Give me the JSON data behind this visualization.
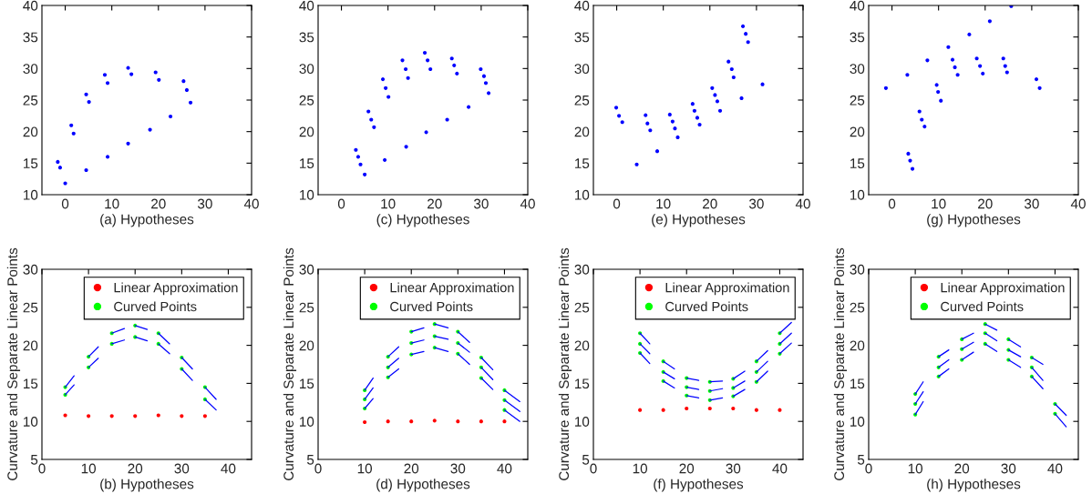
{
  "chart_data": [
    {
      "type": "scatter",
      "xlabel": "(a) Hypotheses",
      "xlim": [
        -5,
        40
      ],
      "ylim": [
        10,
        40
      ],
      "xticks": [
        0,
        10,
        20,
        30,
        40
      ],
      "yticks": [
        10,
        15,
        20,
        25,
        30,
        35,
        40
      ],
      "marker": "circle",
      "series": [
        {
          "color": "#0000ff",
          "x": [
            -1.6,
            -1.1,
            0,
            1.3,
            1.8,
            4.5,
            5.1,
            4.5,
            8.5,
            9.1,
            9.1,
            13.5,
            14.2,
            13.5,
            18.2,
            19.4,
            20.1,
            22.6,
            25.4,
            26.1,
            26.9
          ],
          "values": [
            15.2,
            14.3,
            11.8,
            21.0,
            19.7,
            25.9,
            24.7,
            13.9,
            29.0,
            27.7,
            16.0,
            30.1,
            29.1,
            18.1,
            20.3,
            29.4,
            28.2,
            22.4,
            28.0,
            26.6,
            24.6
          ]
        }
      ]
    },
    {
      "type": "scatter",
      "xlabel": "(c) Hypotheses",
      "xlim": [
        -5,
        40
      ],
      "ylim": [
        10,
        40
      ],
      "xticks": [
        0,
        10,
        20,
        30,
        40
      ],
      "yticks": [
        10,
        15,
        20,
        25,
        30,
        35,
        40
      ],
      "marker": "circle",
      "series": [
        {
          "color": "#0000ff",
          "x": [
            3.1,
            3.6,
            4.1,
            5.0,
            5.8,
            6.4,
            7.0,
            8.9,
            9.5,
            10.1,
            9.3,
            13.1,
            13.8,
            14.3,
            13.9,
            17.9,
            18.5,
            19.1,
            18.2,
            22.7,
            23.7,
            24.2,
            24.8,
            27.3,
            29.9,
            30.6,
            31.0,
            31.6
          ],
          "values": [
            17.1,
            16.0,
            14.8,
            13.2,
            23.2,
            21.9,
            20.7,
            28.3,
            26.9,
            25.5,
            15.5,
            31.3,
            29.9,
            28.5,
            17.6,
            32.5,
            31.3,
            29.9,
            19.9,
            21.9,
            31.6,
            30.5,
            29.2,
            23.9,
            29.9,
            28.8,
            27.7,
            26.1
          ]
        }
      ]
    },
    {
      "type": "scatter",
      "xlabel": "(e) Hypotheses",
      "xlim": [
        -5,
        40
      ],
      "ylim": [
        10,
        40
      ],
      "xticks": [
        0,
        10,
        20,
        30,
        40
      ],
      "yticks": [
        10,
        15,
        20,
        25,
        30,
        35,
        40
      ],
      "marker": "circle",
      "series": [
        {
          "color": "#0000ff",
          "x": [
            -0.1,
            0.5,
            1.2,
            4.3,
            6.2,
            6.6,
            7.2,
            8.7,
            11.4,
            12.0,
            12.5,
            13.1,
            16.3,
            16.7,
            17.3,
            17.8,
            20.5,
            21.1,
            21.6,
            22.2,
            24.0,
            24.7,
            25.1,
            26.8,
            27.1,
            27.7,
            28.2,
            31.3
          ],
          "values": [
            23.8,
            22.5,
            21.5,
            14.8,
            22.6,
            21.3,
            20.2,
            16.9,
            22.7,
            21.6,
            20.5,
            19.1,
            24.4,
            23.3,
            22.2,
            21.1,
            26.9,
            25.8,
            24.8,
            23.3,
            31.1,
            29.9,
            28.6,
            25.3,
            36.7,
            35.5,
            34.2,
            27.5
          ]
        }
      ]
    },
    {
      "type": "scatter",
      "xlabel": "(g) Hypotheses",
      "xlim": [
        -5,
        40
      ],
      "ylim": [
        10,
        40
      ],
      "xticks": [
        0,
        10,
        20,
        30,
        40
      ],
      "yticks": [
        10,
        15,
        20,
        25,
        30,
        35,
        40
      ],
      "marker": "circle",
      "series": [
        {
          "color": "#0000ff",
          "x": [
            -1.3,
            3.3,
            3.5,
            3.9,
            4.4,
            5.9,
            6.4,
            7.0,
            7.6,
            9.6,
            9.9,
            10.5,
            12.1,
            13.0,
            13.5,
            14.1,
            16.6,
            18.2,
            18.9,
            19.5,
            21.0,
            23.9,
            24.3,
            24.7,
            25.6,
            31.0,
            31.7
          ],
          "values": [
            26.9,
            29.0,
            16.5,
            15.4,
            14.1,
            23.2,
            21.9,
            20.8,
            31.3,
            27.4,
            26.3,
            24.9,
            33.4,
            31.4,
            30.2,
            29.0,
            35.4,
            31.6,
            30.4,
            29.2,
            37.5,
            31.6,
            30.4,
            29.4,
            39.9,
            28.3,
            26.9
          ]
        }
      ]
    },
    {
      "type": "scatter",
      "xlabel": "(b) Hypotheses",
      "ylabel": "Curvature and Separate Linear Points",
      "xlim": [
        0,
        45
      ],
      "ylim": [
        5,
        30
      ],
      "xticks": [
        0,
        10,
        20,
        30,
        40
      ],
      "yticks": [
        5,
        10,
        15,
        20,
        25,
        30
      ],
      "marker": "circle",
      "legend": "top right",
      "series": [
        {
          "name": "Linear Approximation",
          "color": "#ff0000",
          "x": [
            5,
            10,
            15,
            20,
            25,
            30,
            35
          ],
          "values": [
            10.8,
            10.7,
            10.7,
            10.7,
            10.8,
            10.7,
            10.7
          ]
        },
        {
          "name": "Curved Points",
          "color": "#00ff00",
          "x": [
            5,
            5,
            10,
            10,
            15,
            15,
            20,
            20,
            25,
            25,
            30,
            30,
            35,
            35
          ],
          "values": [
            14.5,
            13.5,
            18.5,
            17.1,
            21.6,
            20.2,
            22.6,
            21.1,
            21.6,
            20.2,
            18.4,
            16.9,
            14.5,
            12.9
          ]
        },
        {
          "type": "line",
          "marker": "none",
          "color": "#0000ff",
          "x": [
            5,
            6.9
          ],
          "values": [
            14.5,
            16.0
          ]
        },
        {
          "type": "line",
          "marker": "none",
          "color": "#0000ff",
          "x": [
            5,
            6.9
          ],
          "values": [
            13.5,
            14.8
          ]
        },
        {
          "type": "line",
          "marker": "none",
          "color": "#0000ff",
          "x": [
            10,
            12.1
          ],
          "values": [
            18.5,
            19.8
          ]
        },
        {
          "type": "line",
          "marker": "none",
          "color": "#0000ff",
          "x": [
            10,
            12.1
          ],
          "values": [
            17.1,
            18.3
          ]
        },
        {
          "type": "line",
          "marker": "none",
          "color": "#0000ff",
          "x": [
            15,
            17.7
          ],
          "values": [
            21.6,
            22.2
          ]
        },
        {
          "type": "line",
          "marker": "none",
          "color": "#0000ff",
          "x": [
            15,
            17.7
          ],
          "values": [
            20.2,
            20.7
          ]
        },
        {
          "type": "line",
          "marker": "none",
          "color": "#0000ff",
          "x": [
            20,
            22.6
          ],
          "values": [
            22.6,
            22.1
          ]
        },
        {
          "type": "line",
          "marker": "none",
          "color": "#0000ff",
          "x": [
            20,
            22.6
          ],
          "values": [
            21.1,
            20.6
          ]
        },
        {
          "type": "line",
          "marker": "none",
          "color": "#0000ff",
          "x": [
            25,
            27.4
          ],
          "values": [
            21.6,
            20.2
          ]
        },
        {
          "type": "line",
          "marker": "none",
          "color": "#0000ff",
          "x": [
            25,
            27.4
          ],
          "values": [
            20.2,
            18.9
          ]
        },
        {
          "type": "line",
          "marker": "none",
          "color": "#0000ff",
          "x": [
            30,
            32.3
          ],
          "values": [
            18.4,
            16.9
          ]
        },
        {
          "type": "line",
          "marker": "none",
          "color": "#0000ff",
          "x": [
            30,
            32.3
          ],
          "values": [
            16.9,
            15.4
          ]
        },
        {
          "type": "line",
          "marker": "none",
          "color": "#0000ff",
          "x": [
            35,
            37.4
          ],
          "values": [
            14.5,
            12.9
          ]
        },
        {
          "type": "line",
          "marker": "none",
          "color": "#0000ff",
          "x": [
            35,
            37.4
          ],
          "values": [
            12.9,
            11.5
          ]
        }
      ]
    },
    {
      "type": "scatter",
      "xlabel": "(d) Hypotheses",
      "ylabel": "Curvature and Separate Linear Points",
      "xlim": [
        0,
        45
      ],
      "ylim": [
        5,
        30
      ],
      "xticks": [
        0,
        10,
        20,
        30,
        40
      ],
      "yticks": [
        5,
        10,
        15,
        20,
        25,
        30
      ],
      "marker": "circle",
      "legend": "top right",
      "series": [
        {
          "name": "Linear Approximation",
          "color": "#ff0000",
          "x": [
            10,
            15,
            20,
            25,
            30,
            35,
            40
          ],
          "values": [
            9.9,
            10.0,
            10.0,
            10.1,
            10.0,
            10.0,
            10.0
          ]
        },
        {
          "name": "Curved Points",
          "color": "#00ff00",
          "x": [
            10,
            10,
            10,
            15,
            15,
            15,
            20,
            20,
            20,
            25,
            25,
            25,
            30,
            30,
            30,
            35,
            35,
            35,
            40,
            40,
            40
          ],
          "values": [
            14.1,
            12.9,
            11.7,
            18.5,
            17.1,
            15.8,
            21.8,
            20.3,
            18.8,
            22.8,
            21.2,
            19.7,
            21.8,
            20.3,
            18.9,
            18.4,
            17.1,
            15.7,
            14.1,
            12.8,
            11.5
          ]
        },
        {
          "type": "line",
          "marker": "none",
          "color": "#0000ff",
          "x": [
            10,
            11.8
          ],
          "values": [
            14.1,
            15.7
          ]
        },
        {
          "type": "line",
          "marker": "none",
          "color": "#0000ff",
          "x": [
            10,
            11.8
          ],
          "values": [
            12.9,
            14.4
          ]
        },
        {
          "type": "line",
          "marker": "none",
          "color": "#0000ff",
          "x": [
            10,
            11.8
          ],
          "values": [
            11.7,
            13.0
          ]
        },
        {
          "type": "line",
          "marker": "none",
          "color": "#0000ff",
          "x": [
            15,
            17.3
          ],
          "values": [
            18.5,
            19.8
          ]
        },
        {
          "type": "line",
          "marker": "none",
          "color": "#0000ff",
          "x": [
            15,
            17.3
          ],
          "values": [
            17.1,
            18.3
          ]
        },
        {
          "type": "line",
          "marker": "none",
          "color": "#0000ff",
          "x": [
            15,
            17.3
          ],
          "values": [
            15.8,
            16.9
          ]
        },
        {
          "type": "line",
          "marker": "none",
          "color": "#0000ff",
          "x": [
            20,
            22.7
          ],
          "values": [
            21.8,
            22.3
          ]
        },
        {
          "type": "line",
          "marker": "none",
          "color": "#0000ff",
          "x": [
            20,
            22.7
          ],
          "values": [
            20.3,
            20.7
          ]
        },
        {
          "type": "line",
          "marker": "none",
          "color": "#0000ff",
          "x": [
            20,
            22.7
          ],
          "values": [
            18.8,
            19.2
          ]
        },
        {
          "type": "line",
          "marker": "none",
          "color": "#0000ff",
          "x": [
            25,
            27.9
          ],
          "values": [
            22.8,
            22.3
          ]
        },
        {
          "type": "line",
          "marker": "none",
          "color": "#0000ff",
          "x": [
            25,
            27.9
          ],
          "values": [
            21.2,
            20.8
          ]
        },
        {
          "type": "line",
          "marker": "none",
          "color": "#0000ff",
          "x": [
            25,
            27.9
          ],
          "values": [
            19.7,
            19.2
          ]
        },
        {
          "type": "line",
          "marker": "none",
          "color": "#0000ff",
          "x": [
            30,
            32.5
          ],
          "values": [
            21.8,
            20.4
          ]
        },
        {
          "type": "line",
          "marker": "none",
          "color": "#0000ff",
          "x": [
            30,
            32.5
          ],
          "values": [
            20.3,
            19.1
          ]
        },
        {
          "type": "line",
          "marker": "none",
          "color": "#0000ff",
          "x": [
            30,
            32.5
          ],
          "values": [
            18.9,
            17.5
          ]
        },
        {
          "type": "line",
          "marker": "none",
          "color": "#0000ff",
          "x": [
            35,
            37.5
          ],
          "values": [
            18.4,
            16.8
          ]
        },
        {
          "type": "line",
          "marker": "none",
          "color": "#0000ff",
          "x": [
            35,
            37.5
          ],
          "values": [
            17.1,
            15.5
          ]
        },
        {
          "type": "line",
          "marker": "none",
          "color": "#0000ff",
          "x": [
            35,
            37.5
          ],
          "values": [
            15.7,
            14.2
          ]
        },
        {
          "type": "line",
          "marker": "none",
          "color": "#0000ff",
          "x": [
            40,
            43.3
          ],
          "values": [
            14.1,
            12.6
          ]
        },
        {
          "type": "line",
          "marker": "none",
          "color": "#0000ff",
          "x": [
            40,
            43.3
          ],
          "values": [
            12.8,
            11.3
          ]
        },
        {
          "type": "line",
          "marker": "none",
          "color": "#0000ff",
          "x": [
            40,
            43.3
          ],
          "values": [
            11.5,
            10.0
          ]
        }
      ]
    },
    {
      "type": "scatter",
      "xlabel": "(f) Hypotheses",
      "ylabel": "Curvature and Separate Linear Points",
      "xlim": [
        0,
        45
      ],
      "ylim": [
        5,
        30
      ],
      "xticks": [
        0,
        10,
        20,
        30,
        40
      ],
      "yticks": [
        5,
        10,
        15,
        20,
        25,
        30
      ],
      "marker": "circle",
      "legend": "top right",
      "series": [
        {
          "name": "Linear Approximation",
          "color": "#ff0000",
          "x": [
            10,
            15,
            20,
            25,
            30,
            35,
            40
          ],
          "values": [
            11.5,
            11.5,
            11.7,
            11.7,
            11.7,
            11.5,
            11.5
          ]
        },
        {
          "name": "Curved Points",
          "color": "#00ff00",
          "x": [
            10,
            10,
            10,
            15,
            15,
            15,
            20,
            20,
            20,
            25,
            25,
            25,
            30,
            30,
            30,
            35,
            35,
            35,
            40,
            40,
            40
          ],
          "values": [
            21.6,
            20.2,
            19.0,
            17.9,
            16.5,
            15.3,
            15.7,
            14.5,
            13.4,
            15.2,
            14.0,
            12.8,
            15.6,
            14.4,
            13.3,
            17.9,
            16.5,
            15.2,
            21.6,
            20.2,
            18.9
          ]
        },
        {
          "type": "line",
          "marker": "none",
          "color": "#0000ff",
          "x": [
            10,
            12.1
          ],
          "values": [
            21.6,
            20.2
          ]
        },
        {
          "type": "line",
          "marker": "none",
          "color": "#0000ff",
          "x": [
            10,
            12.1
          ],
          "values": [
            20.2,
            18.9
          ]
        },
        {
          "type": "line",
          "marker": "none",
          "color": "#0000ff",
          "x": [
            10,
            12.1
          ],
          "values": [
            19.0,
            17.6
          ]
        },
        {
          "type": "line",
          "marker": "none",
          "color": "#0000ff",
          "x": [
            15,
            17.4
          ],
          "values": [
            17.9,
            16.9
          ]
        },
        {
          "type": "line",
          "marker": "none",
          "color": "#0000ff",
          "x": [
            15,
            17.4
          ],
          "values": [
            16.5,
            15.6
          ]
        },
        {
          "type": "line",
          "marker": "none",
          "color": "#0000ff",
          "x": [
            15,
            17.4
          ],
          "values": [
            15.3,
            14.4
          ]
        },
        {
          "type": "line",
          "marker": "none",
          "color": "#0000ff",
          "x": [
            20,
            22.6
          ],
          "values": [
            15.7,
            15.4
          ]
        },
        {
          "type": "line",
          "marker": "none",
          "color": "#0000ff",
          "x": [
            20,
            22.6
          ],
          "values": [
            14.5,
            14.2
          ]
        },
        {
          "type": "line",
          "marker": "none",
          "color": "#0000ff",
          "x": [
            20,
            22.6
          ],
          "values": [
            13.4,
            13.1
          ]
        },
        {
          "type": "line",
          "marker": "none",
          "color": "#0000ff",
          "x": [
            25,
            27.7
          ],
          "values": [
            15.2,
            15.3
          ]
        },
        {
          "type": "line",
          "marker": "none",
          "color": "#0000ff",
          "x": [
            25,
            27.7
          ],
          "values": [
            14.0,
            14.3
          ]
        },
        {
          "type": "line",
          "marker": "none",
          "color": "#0000ff",
          "x": [
            25,
            27.7
          ],
          "values": [
            12.8,
            13.1
          ]
        },
        {
          "type": "line",
          "marker": "none",
          "color": "#0000ff",
          "x": [
            30,
            32.5
          ],
          "values": [
            15.6,
            16.6
          ]
        },
        {
          "type": "line",
          "marker": "none",
          "color": "#0000ff",
          "x": [
            30,
            32.5
          ],
          "values": [
            14.4,
            15.3
          ]
        },
        {
          "type": "line",
          "marker": "none",
          "color": "#0000ff",
          "x": [
            30,
            32.5
          ],
          "values": [
            13.3,
            14.2
          ]
        },
        {
          "type": "line",
          "marker": "none",
          "color": "#0000ff",
          "x": [
            35,
            37.4
          ],
          "values": [
            17.9,
            19.3
          ]
        },
        {
          "type": "line",
          "marker": "none",
          "color": "#0000ff",
          "x": [
            35,
            37.4
          ],
          "values": [
            16.5,
            17.9
          ]
        },
        {
          "type": "line",
          "marker": "none",
          "color": "#0000ff",
          "x": [
            35,
            37.4
          ],
          "values": [
            15.2,
            16.6
          ]
        },
        {
          "type": "line",
          "marker": "none",
          "color": "#0000ff",
          "x": [
            40,
            42.5
          ],
          "values": [
            21.6,
            23.0
          ]
        },
        {
          "type": "line",
          "marker": "none",
          "color": "#0000ff",
          "x": [
            40,
            42.5
          ],
          "values": [
            20.2,
            21.6
          ]
        },
        {
          "type": "line",
          "marker": "none",
          "color": "#0000ff",
          "x": [
            40,
            42.5
          ],
          "values": [
            18.9,
            20.3
          ]
        }
      ]
    },
    {
      "type": "scatter",
      "xlabel": "(h) Hypotheses",
      "ylabel": "Curvature and Separate Linear Points",
      "xlim": [
        0,
        45
      ],
      "ylim": [
        5,
        30
      ],
      "xticks": [
        0,
        10,
        20,
        30,
        40
      ],
      "yticks": [
        5,
        10,
        15,
        20,
        25,
        30
      ],
      "marker": "circle",
      "legend": "top right",
      "series": [
        {
          "name": "Linear Approximation",
          "color": "#ff0000"
        },
        {
          "name": "Curved Points",
          "color": "#00ff00",
          "x": [
            10,
            10,
            10,
            15,
            15,
            15,
            20,
            20,
            20,
            25,
            25,
            25,
            30,
            30,
            30,
            35,
            35,
            35,
            40,
            40
          ],
          "values": [
            13.6,
            12.3,
            10.9,
            18.5,
            17.1,
            15.9,
            20.8,
            19.5,
            18.1,
            22.8,
            21.6,
            20.2,
            20.8,
            19.4,
            18.1,
            18.4,
            17.1,
            15.9,
            12.3,
            11.0
          ]
        },
        {
          "type": "line",
          "marker": "none",
          "color": "#0000ff",
          "x": [
            10,
            11.7
          ],
          "values": [
            13.6,
            15.2
          ]
        },
        {
          "type": "line",
          "marker": "none",
          "color": "#0000ff",
          "x": [
            10,
            11.7
          ],
          "values": [
            12.3,
            13.9
          ]
        },
        {
          "type": "line",
          "marker": "none",
          "color": "#0000ff",
          "x": [
            10,
            11.7
          ],
          "values": [
            10.9,
            12.6
          ]
        },
        {
          "type": "line",
          "marker": "none",
          "color": "#0000ff",
          "x": [
            15,
            17.2
          ],
          "values": [
            18.5,
            19.4
          ]
        },
        {
          "type": "line",
          "marker": "none",
          "color": "#0000ff",
          "x": [
            15,
            17.2
          ],
          "values": [
            17.1,
            18.1
          ]
        },
        {
          "type": "line",
          "marker": "none",
          "color": "#0000ff",
          "x": [
            15,
            17.2
          ],
          "values": [
            15.9,
            16.9
          ]
        },
        {
          "type": "line",
          "marker": "none",
          "color": "#0000ff",
          "x": [
            20,
            22.5
          ],
          "values": [
            20.8,
            21.6
          ]
        },
        {
          "type": "line",
          "marker": "none",
          "color": "#0000ff",
          "x": [
            20,
            22.5
          ],
          "values": [
            19.5,
            20.4
          ]
        },
        {
          "type": "line",
          "marker": "none",
          "color": "#0000ff",
          "x": [
            20,
            22.5
          ],
          "values": [
            18.1,
            19.1
          ]
        },
        {
          "type": "line",
          "marker": "none",
          "color": "#0000ff",
          "x": [
            25,
            27.5
          ],
          "values": [
            22.8,
            22.0
          ]
        },
        {
          "type": "line",
          "marker": "none",
          "color": "#0000ff",
          "x": [
            25,
            27.5
          ],
          "values": [
            21.6,
            20.6
          ]
        },
        {
          "type": "line",
          "marker": "none",
          "color": "#0000ff",
          "x": [
            25,
            27.5
          ],
          "values": [
            20.2,
            19.2
          ]
        },
        {
          "type": "line",
          "marker": "none",
          "color": "#0000ff",
          "x": [
            30,
            32.6
          ],
          "values": [
            20.8,
            19.8
          ]
        },
        {
          "type": "line",
          "marker": "none",
          "color": "#0000ff",
          "x": [
            30,
            32.6
          ],
          "values": [
            19.4,
            18.5
          ]
        },
        {
          "type": "line",
          "marker": "none",
          "color": "#0000ff",
          "x": [
            30,
            32.6
          ],
          "values": [
            18.1,
            17.1
          ]
        },
        {
          "type": "line",
          "marker": "none",
          "color": "#0000ff",
          "x": [
            35,
            37.4
          ],
          "values": [
            18.4,
            17.5
          ]
        },
        {
          "type": "line",
          "marker": "none",
          "color": "#0000ff",
          "x": [
            35,
            37.4
          ],
          "values": [
            17.1,
            15.4
          ]
        },
        {
          "type": "line",
          "marker": "none",
          "color": "#0000ff",
          "x": [
            35,
            37.4
          ],
          "values": [
            15.9,
            14.3
          ]
        },
        {
          "type": "line",
          "marker": "none",
          "color": "#0000ff",
          "x": [
            40,
            42.4
          ],
          "values": [
            12.3,
            10.8
          ]
        },
        {
          "type": "line",
          "marker": "none",
          "color": "#0000ff",
          "x": [
            40,
            42.4
          ],
          "values": [
            11.0,
            9.3
          ]
        }
      ]
    }
  ]
}
